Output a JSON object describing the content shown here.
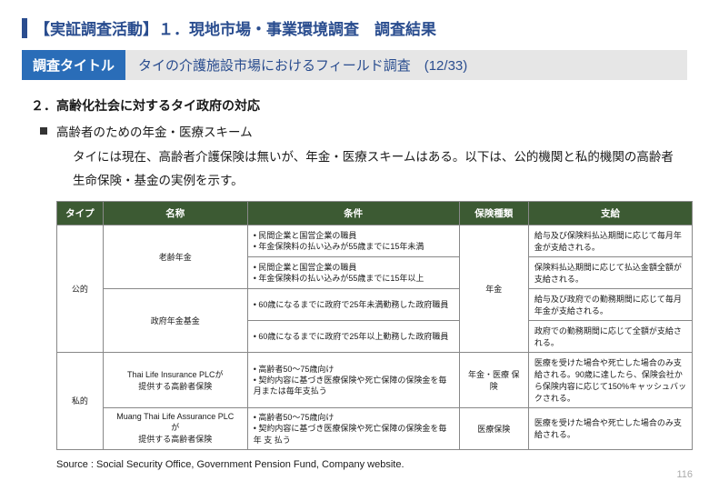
{
  "header": "【実証調査活動】１．現地市場・事業環境調査　調査結果",
  "title_badge": "調査タイトル",
  "title_text": "タイの介護施設市場におけるフィールド調査　(12/33)",
  "section_num": "２．高齢化社会に対するタイ政府の対応",
  "bullet": "高齢者のための年金・医療スキーム",
  "body": "タイには現在、高齢者介護保険は無いが、年金・医療スキームはある。以下は、公的機関と私的機関の高齢者生命保険・基金の実例を示す。",
  "columns": {
    "c1": "タイプ",
    "c2": "名称",
    "c3": "条件",
    "c4": "保険種類",
    "c5": "支給"
  },
  "rows": {
    "type_public": "公的",
    "type_private": "私的",
    "name_r1": "老齢年金",
    "name_r2": "政府年金基金",
    "name_r3a": "Thai Life Insurance PLCが",
    "name_r3b": "提供する高齢者保険",
    "name_r4a": "Muang Thai Life Assurance PLC",
    "name_r4b": "が",
    "name_r4c": "提供する高齢者保険",
    "cond_r1a": "民間企業と国営企業の職員",
    "cond_r1b": "年金保険料の払い込みが55歳までに15年未満",
    "cond_r1c": "民間企業と国営企業の職員",
    "cond_r1d": "年金保険料の払い込みが55歳までに15年以上",
    "cond_r2a": "60歳になるまでに政府で25年未満勤務した政府職員",
    "cond_r2b": "60歳になるまでに政府で25年以上勤務した政府職員",
    "cond_r3a": "高齢者50～75歳向け",
    "cond_r3b": "契約内容に基づき医療保険や死亡保障の保険金を毎月または毎年支払う",
    "cond_r4a": "高齢者50～75歳向け",
    "cond_r4b": "契約内容に基づき医療保険や死亡保障の保険金を毎年 支 払う",
    "kind_r1": "年金",
    "kind_r3": "年金・医療 保険",
    "kind_r4": "医療保険",
    "pay_r1a": "給与及び保険料払込期間に応じて毎月年金が支給される。",
    "pay_r1b": "保険料払込期間に応じて払込金額全額が支給される。",
    "pay_r2a": "給与及び政府での勤務期間に応じて毎月年金が支給される。",
    "pay_r2b": "政府での勤務期間に応じて全額が支給される。",
    "pay_r3": "医療を受けた場合や死亡した場合のみ支給される。90歳に達したら、保険会社から保険内容に応じて150%キャッシュバックされる。",
    "pay_r4": "医療を受けた場合や死亡した場合のみ支給される。"
  },
  "source": "Source : Social Security Office, Government Pension Fund, Company website.",
  "page_number": "116",
  "colors": {
    "header_blue": "#2a4d8f",
    "badge_blue": "#2a6db8",
    "title_bg": "#e6e6e6",
    "th_green": "#3c5a33"
  }
}
